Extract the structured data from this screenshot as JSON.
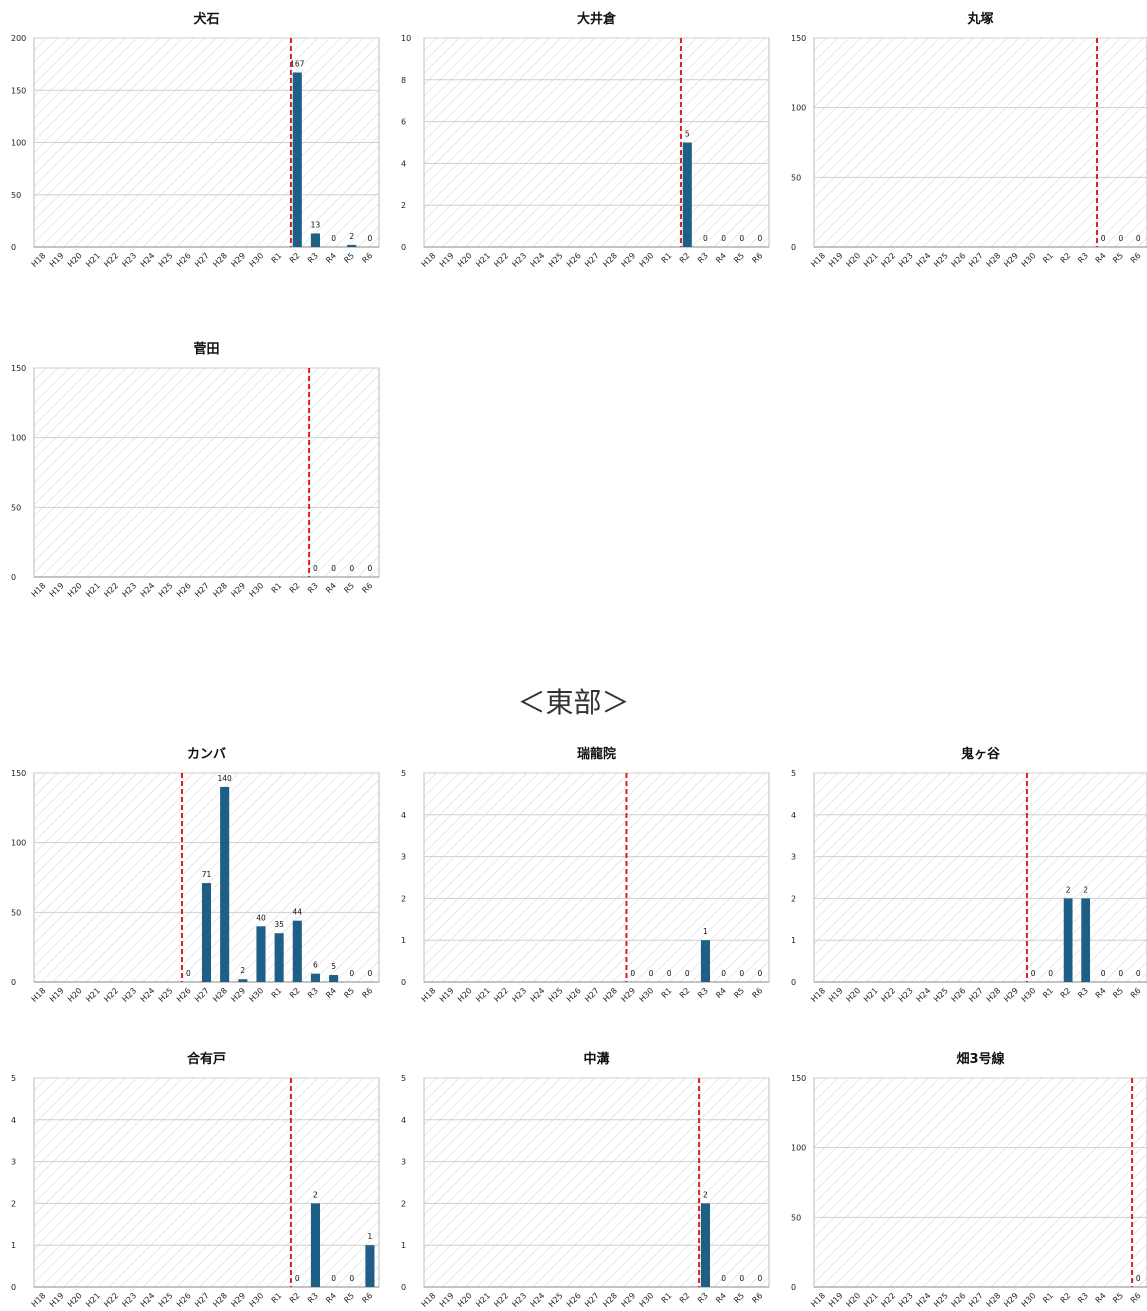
{
  "section_heading": "＜東部＞",
  "colors": {
    "bar": "#1d5f86",
    "marker": "#e31b1b",
    "grid": "#cfcfcf"
  },
  "chart_data": [
    {
      "type": "bar",
      "title": "犬石",
      "categories": [
        "H18",
        "H19",
        "H20",
        "H21",
        "H22",
        "H23",
        "H24",
        "H25",
        "H26",
        "H27",
        "H28",
        "H29",
        "H30",
        "R1",
        "R2",
        "R3",
        "R4",
        "R5",
        "R6"
      ],
      "values": [
        null,
        null,
        null,
        null,
        null,
        null,
        null,
        null,
        null,
        null,
        null,
        null,
        null,
        null,
        167,
        13,
        0,
        2,
        0
      ],
      "ylim": [
        0,
        200
      ],
      "yticks": [
        0,
        50,
        100,
        150,
        200
      ],
      "marker_before": "R2",
      "xlabel": "",
      "ylabel": ""
    },
    {
      "type": "bar",
      "title": "大井倉",
      "categories": [
        "H18",
        "H19",
        "H20",
        "H21",
        "H22",
        "H23",
        "H24",
        "H25",
        "H26",
        "H27",
        "H28",
        "H29",
        "H30",
        "R1",
        "R2",
        "R3",
        "R4",
        "R5",
        "R6"
      ],
      "values": [
        null,
        null,
        null,
        null,
        null,
        null,
        null,
        null,
        null,
        null,
        null,
        null,
        null,
        null,
        5,
        0,
        0,
        0,
        0
      ],
      "ylim": [
        0,
        10
      ],
      "yticks": [
        0,
        2,
        4,
        6,
        8,
        10
      ],
      "marker_before": "R2",
      "xlabel": "",
      "ylabel": ""
    },
    {
      "type": "bar",
      "title": "丸塚",
      "categories": [
        "H18",
        "H19",
        "H20",
        "H21",
        "H22",
        "H23",
        "H24",
        "H25",
        "H26",
        "H27",
        "H28",
        "H29",
        "H30",
        "R1",
        "R2",
        "R3",
        "R4",
        "R5",
        "R6"
      ],
      "values": [
        null,
        null,
        null,
        null,
        null,
        null,
        null,
        null,
        null,
        null,
        null,
        null,
        null,
        null,
        null,
        null,
        0,
        0,
        0
      ],
      "ylim": [
        0,
        150
      ],
      "yticks": [
        0,
        50,
        100,
        150
      ],
      "marker_before": "R4",
      "xlabel": "",
      "ylabel": ""
    },
    {
      "type": "bar",
      "title": "菅田",
      "categories": [
        "H18",
        "H19",
        "H20",
        "H21",
        "H22",
        "H23",
        "H24",
        "H25",
        "H26",
        "H27",
        "H28",
        "H29",
        "H30",
        "R1",
        "R2",
        "R3",
        "R4",
        "R5",
        "R6"
      ],
      "values": [
        null,
        null,
        null,
        null,
        null,
        null,
        null,
        null,
        null,
        null,
        null,
        null,
        null,
        null,
        null,
        0,
        0,
        0,
        0
      ],
      "ylim": [
        0,
        150
      ],
      "yticks": [
        0,
        50,
        100,
        150
      ],
      "marker_before": "R3",
      "xlabel": "",
      "ylabel": ""
    },
    {
      "type": "bar",
      "title": "カンバ",
      "categories": [
        "H18",
        "H19",
        "H20",
        "H21",
        "H22",
        "H23",
        "H24",
        "H25",
        "H26",
        "H27",
        "H28",
        "H29",
        "H30",
        "R1",
        "R2",
        "R3",
        "R4",
        "R5",
        "R6"
      ],
      "values": [
        null,
        null,
        null,
        null,
        null,
        null,
        null,
        null,
        0,
        71,
        140,
        2,
        40,
        35,
        44,
        6,
        5,
        0,
        0
      ],
      "ylim": [
        0,
        150
      ],
      "yticks": [
        0,
        50,
        100,
        150
      ],
      "marker_before": "H26",
      "xlabel": "",
      "ylabel": ""
    },
    {
      "type": "bar",
      "title": "瑞龍院",
      "categories": [
        "H18",
        "H19",
        "H20",
        "H21",
        "H22",
        "H23",
        "H24",
        "H25",
        "H26",
        "H27",
        "H28",
        "H29",
        "H30",
        "R1",
        "R2",
        "R3",
        "R4",
        "R5",
        "R6"
      ],
      "values": [
        null,
        null,
        null,
        null,
        null,
        null,
        null,
        null,
        null,
        null,
        null,
        0,
        0,
        0,
        0,
        1,
        0,
        0,
        0
      ],
      "ylim": [
        0,
        5
      ],
      "yticks": [
        0,
        1,
        2,
        3,
        4,
        5
      ],
      "marker_before": "H29",
      "xlabel": "",
      "ylabel": ""
    },
    {
      "type": "bar",
      "title": "鬼ヶ谷",
      "categories": [
        "H18",
        "H19",
        "H20",
        "H21",
        "H22",
        "H23",
        "H24",
        "H25",
        "H26",
        "H27",
        "H28",
        "H29",
        "H30",
        "R1",
        "R2",
        "R3",
        "R4",
        "R5",
        "R6"
      ],
      "values": [
        null,
        null,
        null,
        null,
        null,
        null,
        null,
        null,
        null,
        null,
        null,
        null,
        0,
        0,
        2,
        2,
        0,
        0,
        0
      ],
      "ylim": [
        0,
        5
      ],
      "yticks": [
        0,
        1,
        2,
        3,
        4,
        5
      ],
      "marker_before": "H30",
      "xlabel": "",
      "ylabel": ""
    },
    {
      "type": "bar",
      "title": "合有戸",
      "categories": [
        "H18",
        "H19",
        "H20",
        "H21",
        "H22",
        "H23",
        "H24",
        "H25",
        "H26",
        "H27",
        "H28",
        "H29",
        "H30",
        "R1",
        "R2",
        "R3",
        "R4",
        "R5",
        "R6"
      ],
      "values": [
        null,
        null,
        null,
        null,
        null,
        null,
        null,
        null,
        null,
        null,
        null,
        null,
        null,
        null,
        0,
        2,
        0,
        0,
        1
      ],
      "ylim": [
        0,
        5
      ],
      "yticks": [
        0,
        1,
        2,
        3,
        4,
        5
      ],
      "marker_before": "R2",
      "xlabel": "",
      "ylabel": ""
    },
    {
      "type": "bar",
      "title": "中溝",
      "categories": [
        "H18",
        "H19",
        "H20",
        "H21",
        "H22",
        "H23",
        "H24",
        "H25",
        "H26",
        "H27",
        "H28",
        "H29",
        "H30",
        "R1",
        "R2",
        "R3",
        "R4",
        "R5",
        "R6"
      ],
      "values": [
        null,
        null,
        null,
        null,
        null,
        null,
        null,
        null,
        null,
        null,
        null,
        null,
        null,
        null,
        null,
        2,
        0,
        0,
        0
      ],
      "ylim": [
        0,
        5
      ],
      "yticks": [
        0,
        1,
        2,
        3,
        4,
        5
      ],
      "marker_before": "R3",
      "xlabel": "",
      "ylabel": ""
    },
    {
      "type": "bar",
      "title": "畑3号線",
      "categories": [
        "H18",
        "H19",
        "H20",
        "H21",
        "H22",
        "H23",
        "H24",
        "H25",
        "H26",
        "H27",
        "H28",
        "H29",
        "H30",
        "R1",
        "R2",
        "R3",
        "R4",
        "R5",
        "R6"
      ],
      "values": [
        null,
        null,
        null,
        null,
        null,
        null,
        null,
        null,
        null,
        null,
        null,
        null,
        null,
        null,
        null,
        null,
        null,
        null,
        0
      ],
      "ylim": [
        0,
        150
      ],
      "yticks": [
        0,
        50,
        100,
        150
      ],
      "marker_before": "R6",
      "xlabel": "",
      "ylabel": ""
    }
  ]
}
